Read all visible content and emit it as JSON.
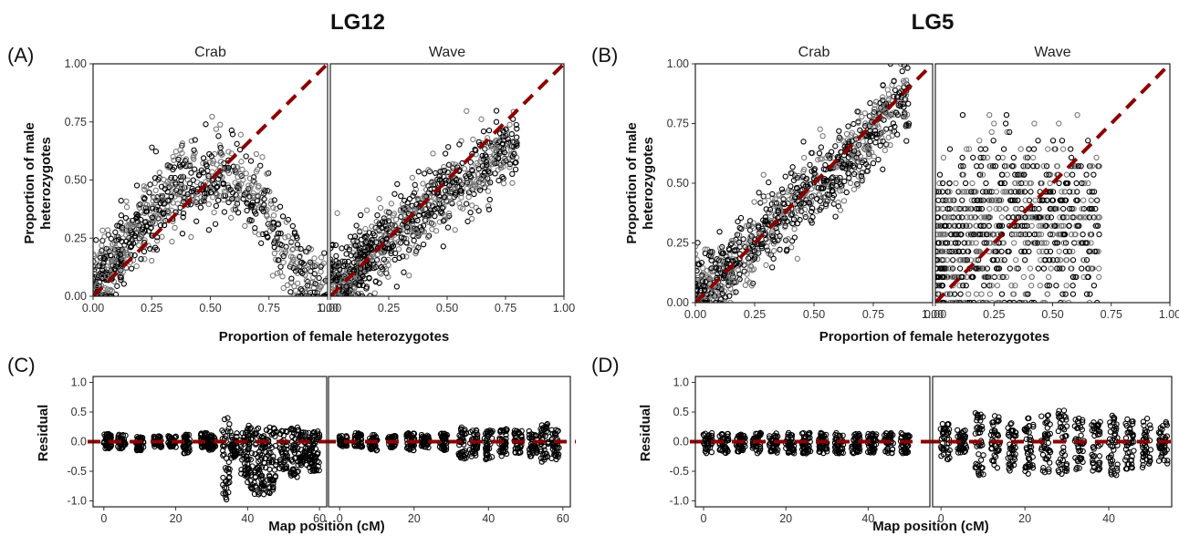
{
  "titles": {
    "left": "LG12",
    "right": "LG5"
  },
  "panel_labels": [
    "(A)",
    "(B)",
    "(C)",
    "(D)"
  ],
  "axis_titles": {
    "scatter_x": "Proportion of female heterozygotes",
    "scatter_y_line1": "Proportion of male",
    "scatter_y_line2": "heterozygotes",
    "residual_x": "Map position (cM)",
    "residual_y": "Residual"
  },
  "colors": {
    "points": "#000000",
    "reference_line": "#8b0000",
    "frame": "#222222"
  },
  "chart_data": [
    {
      "type": "scatter",
      "panel": "(A)",
      "linkage_group": "LG12",
      "facets": [
        "Crab",
        "Wave"
      ],
      "xlabel": "Proportion of female heterozygotes",
      "ylabel": "Proportion of male heterozygotes",
      "xlim": [
        0,
        1
      ],
      "ylim": [
        0,
        1
      ],
      "x_ticks": [
        "0.00",
        "0.25",
        "0.50",
        "0.75",
        "1.00"
      ],
      "y_ticks": [
        "0.00",
        "0.25",
        "0.50",
        "0.75",
        "1.00"
      ],
      "reference_line": "y = x (dashed)",
      "series": [
        {
          "facet": "Crab",
          "trend_x": [
            0.0,
            0.1,
            0.2,
            0.3,
            0.4,
            0.5,
            0.6,
            0.7,
            0.8,
            0.9,
            1.0
          ],
          "trend_y": [
            0.05,
            0.15,
            0.3,
            0.42,
            0.5,
            0.52,
            0.5,
            0.42,
            0.25,
            0.1,
            0.05
          ]
        },
        {
          "facet": "Wave",
          "trend_x": [
            0.0,
            0.1,
            0.2,
            0.3,
            0.4,
            0.5,
            0.6,
            0.7,
            0.8
          ],
          "trend_y": [
            0.02,
            0.1,
            0.2,
            0.3,
            0.37,
            0.45,
            0.5,
            0.6,
            0.65
          ]
        }
      ]
    },
    {
      "type": "scatter",
      "panel": "(B)",
      "linkage_group": "LG5",
      "facets": [
        "Crab",
        "Wave"
      ],
      "xlabel": "Proportion of female heterozygotes",
      "ylabel": "Proportion of male heterozygotes",
      "xlim": [
        0,
        1
      ],
      "ylim": [
        0,
        1
      ],
      "x_ticks": [
        "0.00",
        "0.25",
        "0.50",
        "0.75",
        "1.00"
      ],
      "y_ticks": [
        "0.00",
        "0.25",
        "0.50",
        "0.75",
        "1.00"
      ],
      "reference_line": "y = x (dashed)",
      "series": [
        {
          "facet": "Crab",
          "trend_x": [
            0.0,
            0.1,
            0.2,
            0.3,
            0.4,
            0.5,
            0.6,
            0.7,
            0.8,
            0.9
          ],
          "trend_y": [
            0.02,
            0.1,
            0.2,
            0.3,
            0.4,
            0.48,
            0.55,
            0.65,
            0.8,
            0.88
          ]
        },
        {
          "facet": "Wave",
          "trend_x": [
            0.0,
            0.1,
            0.2,
            0.3,
            0.4,
            0.5,
            0.6,
            0.7
          ],
          "trend_y": [
            0.15,
            0.25,
            0.3,
            0.35,
            0.35,
            0.35,
            0.3,
            0.3
          ]
        }
      ]
    },
    {
      "type": "scatter",
      "panel": "(C)",
      "linkage_group": "LG12",
      "facets": [
        "Crab",
        "Wave"
      ],
      "xlabel": "Map position (cM)",
      "ylabel": "Residual",
      "xlim": [
        -3,
        62
      ],
      "ylim": [
        -1.1,
        1.1
      ],
      "x_ticks": [
        "0",
        "20",
        "40",
        "60"
      ],
      "y_ticks": [
        "-1.0",
        "-0.5",
        "0.0",
        "0.5",
        "1.0"
      ],
      "reference_line": "y = 0 (dashed)",
      "series": [
        {
          "facet": "Crab",
          "clusters": [
            {
              "x": 1,
              "lo": -0.12,
              "hi": 0.15
            },
            {
              "x": 5,
              "lo": -0.12,
              "hi": 0.12
            },
            {
              "x": 10,
              "lo": -0.15,
              "hi": 0.1
            },
            {
              "x": 15,
              "lo": -0.1,
              "hi": 0.1
            },
            {
              "x": 19,
              "lo": -0.1,
              "hi": 0.1
            },
            {
              "x": 23,
              "lo": -0.2,
              "hi": 0.12
            },
            {
              "x": 28,
              "lo": -0.1,
              "hi": 0.15
            },
            {
              "x": 30,
              "lo": -0.15,
              "hi": 0.12
            },
            {
              "x": 34,
              "lo": -1.0,
              "hi": 0.4
            },
            {
              "x": 36,
              "lo": -0.3,
              "hi": 0.2
            },
            {
              "x": 39,
              "lo": -0.6,
              "hi": 0.2
            },
            {
              "x": 41,
              "lo": -0.8,
              "hi": 0.3
            },
            {
              "x": 43,
              "lo": -0.9,
              "hi": 0.25
            },
            {
              "x": 45,
              "lo": -0.9,
              "hi": 0.2
            },
            {
              "x": 47,
              "lo": -0.95,
              "hi": 0.3
            },
            {
              "x": 50,
              "lo": -0.5,
              "hi": 0.2
            },
            {
              "x": 53,
              "lo": -0.6,
              "hi": 0.25
            },
            {
              "x": 55,
              "lo": -0.4,
              "hi": 0.2
            },
            {
              "x": 57,
              "lo": -0.5,
              "hi": 0.2
            },
            {
              "x": 59,
              "lo": -0.5,
              "hi": 0.2
            }
          ]
        },
        {
          "facet": "Wave",
          "clusters": [
            {
              "x": 1,
              "lo": -0.1,
              "hi": 0.1
            },
            {
              "x": 5,
              "lo": -0.1,
              "hi": 0.15
            },
            {
              "x": 9,
              "lo": -0.15,
              "hi": 0.12
            },
            {
              "x": 14,
              "lo": -0.1,
              "hi": 0.1
            },
            {
              "x": 19,
              "lo": -0.15,
              "hi": 0.15
            },
            {
              "x": 23,
              "lo": -0.1,
              "hi": 0.12
            },
            {
              "x": 28,
              "lo": -0.15,
              "hi": 0.15
            },
            {
              "x": 33,
              "lo": -0.3,
              "hi": 0.25
            },
            {
              "x": 36,
              "lo": -0.25,
              "hi": 0.2
            },
            {
              "x": 40,
              "lo": -0.3,
              "hi": 0.2
            },
            {
              "x": 44,
              "lo": -0.25,
              "hi": 0.25
            },
            {
              "x": 48,
              "lo": -0.2,
              "hi": 0.2
            },
            {
              "x": 52,
              "lo": -0.25,
              "hi": 0.2
            },
            {
              "x": 55,
              "lo": -0.35,
              "hi": 0.3
            },
            {
              "x": 58,
              "lo": -0.3,
              "hi": 0.2
            }
          ]
        }
      ]
    },
    {
      "type": "scatter",
      "panel": "(D)",
      "linkage_group": "LG5",
      "facets": [
        "Crab",
        "Wave"
      ],
      "xlabel": "Map position (cM)",
      "ylabel": "Residual",
      "xlim": [
        -2,
        55
      ],
      "ylim": [
        -1.1,
        1.1
      ],
      "x_ticks": [
        "0",
        "20",
        "40"
      ],
      "y_ticks": [
        "-1.0",
        "-0.5",
        "0.0",
        "0.5",
        "1.0"
      ],
      "reference_line": "y = 0 (dashed)",
      "series": [
        {
          "facet": "Crab",
          "clusters": [
            {
              "x": 1,
              "lo": -0.2,
              "hi": 0.15
            },
            {
              "x": 5,
              "lo": -0.2,
              "hi": 0.15
            },
            {
              "x": 9,
              "lo": -0.2,
              "hi": 0.15
            },
            {
              "x": 13,
              "lo": -0.2,
              "hi": 0.15
            },
            {
              "x": 17,
              "lo": -0.2,
              "hi": 0.15
            },
            {
              "x": 21,
              "lo": -0.2,
              "hi": 0.15
            },
            {
              "x": 25,
              "lo": -0.2,
              "hi": 0.15
            },
            {
              "x": 29,
              "lo": -0.2,
              "hi": 0.15
            },
            {
              "x": 33,
              "lo": -0.2,
              "hi": 0.15
            },
            {
              "x": 37,
              "lo": -0.2,
              "hi": 0.15
            },
            {
              "x": 41,
              "lo": -0.2,
              "hi": 0.15
            },
            {
              "x": 45,
              "lo": -0.2,
              "hi": 0.15
            },
            {
              "x": 49,
              "lo": -0.2,
              "hi": 0.15
            }
          ]
        },
        {
          "facet": "Wave",
          "clusters": [
            {
              "x": 1,
              "lo": -0.3,
              "hi": 0.3
            },
            {
              "x": 5,
              "lo": -0.2,
              "hi": 0.2
            },
            {
              "x": 9,
              "lo": -0.6,
              "hi": 0.5
            },
            {
              "x": 13,
              "lo": -0.5,
              "hi": 0.45
            },
            {
              "x": 17,
              "lo": -0.5,
              "hi": 0.35
            },
            {
              "x": 21,
              "lo": -0.55,
              "hi": 0.4
            },
            {
              "x": 25,
              "lo": -0.55,
              "hi": 0.45
            },
            {
              "x": 29,
              "lo": -0.55,
              "hi": 0.55
            },
            {
              "x": 33,
              "lo": -0.5,
              "hi": 0.4
            },
            {
              "x": 37,
              "lo": -0.5,
              "hi": 0.35
            },
            {
              "x": 41,
              "lo": -0.6,
              "hi": 0.45
            },
            {
              "x": 45,
              "lo": -0.5,
              "hi": 0.4
            },
            {
              "x": 49,
              "lo": -0.45,
              "hi": 0.4
            },
            {
              "x": 53,
              "lo": -0.4,
              "hi": 0.35
            }
          ]
        }
      ]
    }
  ]
}
